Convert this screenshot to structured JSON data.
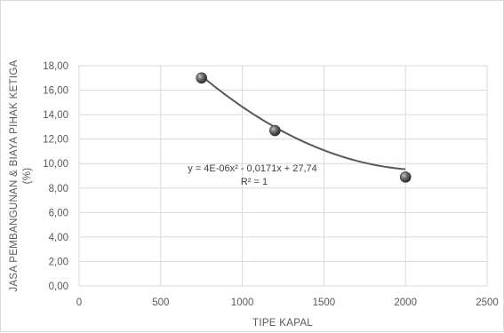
{
  "chart_data": {
    "type": "scatter",
    "xlabel": "TIPE KAPAL",
    "ylabel_line1": "JASA PEMBANGUNAN & BIAYA PIHAK KETIGA",
    "ylabel_line2": "(%)",
    "xlim": [
      0,
      2500
    ],
    "ylim": [
      0,
      18
    ],
    "x_ticks": [
      0,
      500,
      1000,
      1500,
      2000,
      2500
    ],
    "x_tick_labels": [
      "0",
      "500",
      "1000",
      "1500",
      "2000",
      "2500"
    ],
    "y_ticks": [
      0,
      2,
      4,
      6,
      8,
      10,
      12,
      14,
      16,
      18
    ],
    "y_tick_labels": [
      "0,00",
      "2,00",
      "4,00",
      "6,00",
      "8,00",
      "10,00",
      "12,00",
      "14,00",
      "16,00",
      "18,00"
    ],
    "grid": true,
    "legend": "none",
    "series": [
      {
        "points": [
          {
            "x": 750,
            "y": 17.0
          },
          {
            "x": 1200,
            "y": 12.7
          },
          {
            "x": 2000,
            "y": 8.9
          }
        ]
      }
    ],
    "trendline": {
      "type": "polynomial",
      "coefficients": [
        4e-06,
        -0.0171,
        27.74
      ],
      "equation_label": "y = 4E-06x² - 0,0171x + 27,74",
      "r2_label": "R² = 1"
    },
    "colors": {
      "marker": "#5a5a5a",
      "trendline": "#595959",
      "grid": "#d9d9d9",
      "text": "#595959"
    }
  }
}
